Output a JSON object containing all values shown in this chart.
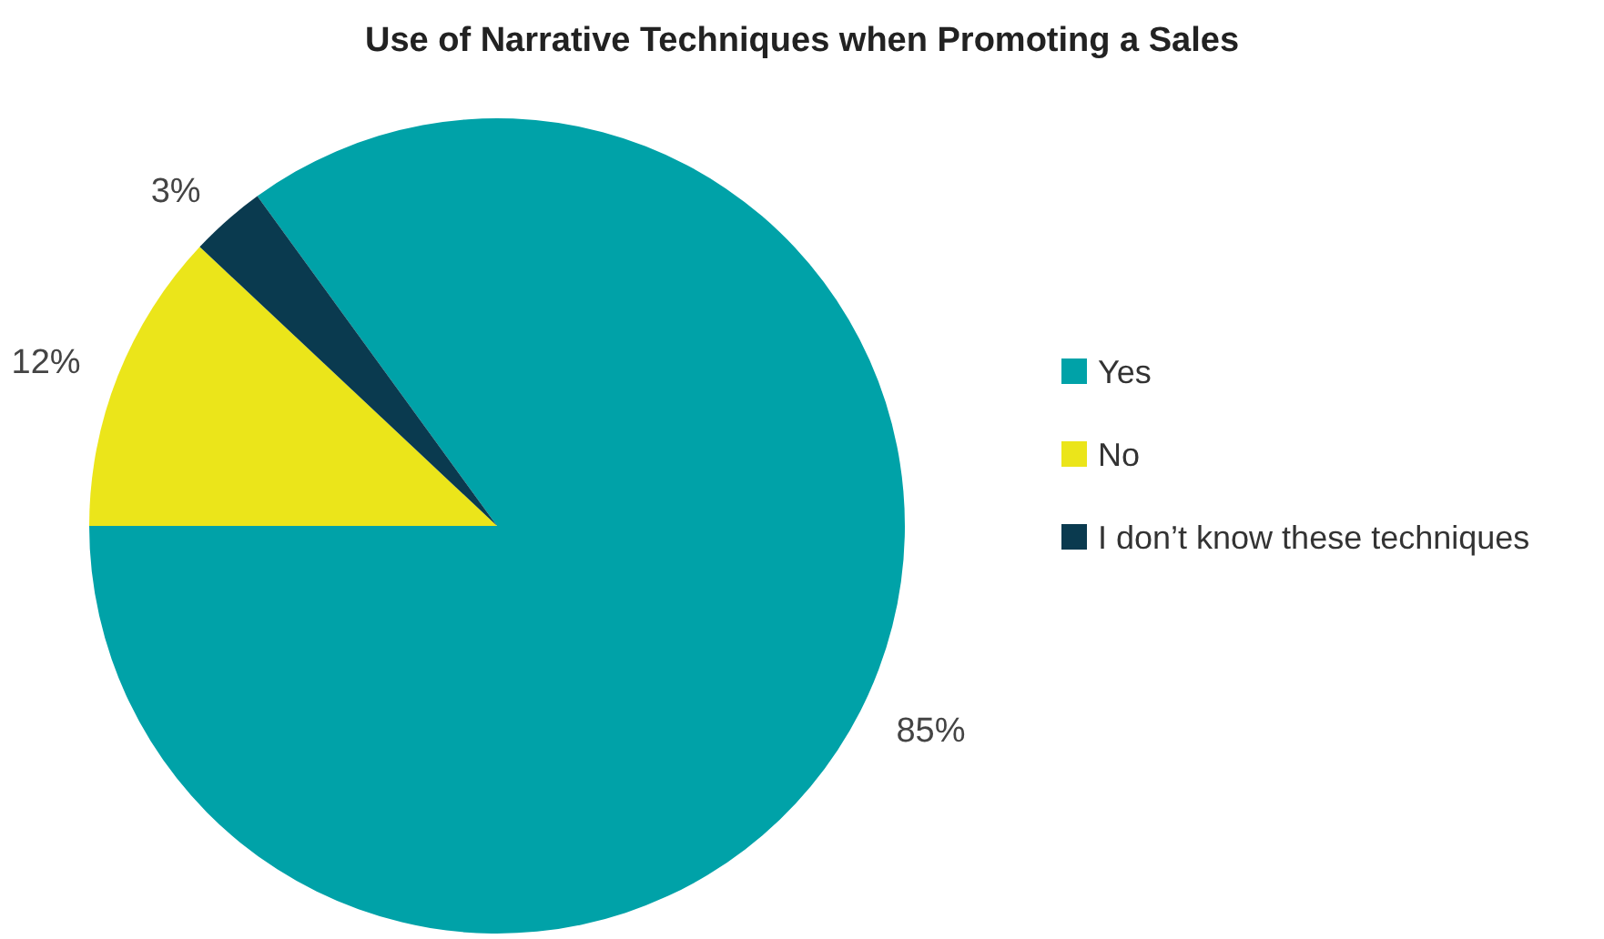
{
  "chart_data": {
    "type": "pie",
    "title": "Use of Narrative Techniques when Promoting a Sales",
    "categories": [
      "Yes",
      "No",
      "I don’t know these techniques"
    ],
    "values": [
      85,
      12,
      3
    ],
    "colors": [
      "#00a2a8",
      "#ebe51a",
      "#0a3a4f"
    ],
    "value_labels": [
      "85%",
      "12%",
      "3%"
    ],
    "legend": "right"
  }
}
